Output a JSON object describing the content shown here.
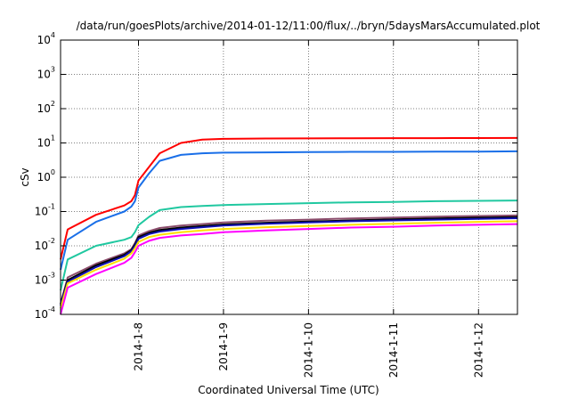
{
  "chart_data": {
    "type": "line",
    "title": "/data/run/goesPlots/archive/2014-01-12/11:00/flux/../bryn/5daysMarsAccumulated.plot",
    "xlabel": "Coordinated Universal Time (UTC)",
    "ylabel": "cSv",
    "yscale": "log",
    "ylim": [
      0.0001,
      10000
    ],
    "y_ticks": [
      {
        "base": "10",
        "exp": "-4",
        "value": 0.0001
      },
      {
        "base": "10",
        "exp": "-3",
        "value": 0.001
      },
      {
        "base": "10",
        "exp": "-2",
        "value": 0.01
      },
      {
        "base": "10",
        "exp": "-1",
        "value": 0.1
      },
      {
        "base": "10",
        "exp": "0",
        "value": 1
      },
      {
        "base": "10",
        "exp": "1",
        "value": 10
      },
      {
        "base": "10",
        "exp": "2",
        "value": 100
      },
      {
        "base": "10",
        "exp": "3",
        "value": 1000
      },
      {
        "base": "10",
        "exp": "4",
        "value": 10000
      }
    ],
    "xlim": [
      "2014-01-07 02:00",
      "2014-01-12 11:00"
    ],
    "x_ticks": [
      {
        "label": "2014-1-8",
        "value": "2014-01-08 00:00"
      },
      {
        "label": "2014-1-9",
        "value": "2014-01-09 00:00"
      },
      {
        "label": "2014-1-10",
        "value": "2014-01-10 00:00"
      },
      {
        "label": "2014-1-11",
        "value": "2014-01-11 00:00"
      },
      {
        "label": "2014-1-12",
        "value": "2014-01-12 00:00"
      }
    ],
    "grid": true,
    "x": [
      "2014-01-07 02:00",
      "2014-01-07 04:00",
      "2014-01-07 12:00",
      "2014-01-07 20:00",
      "2014-01-07 22:00",
      "2014-01-07 23:00",
      "2014-01-08 00:00",
      "2014-01-08 03:00",
      "2014-01-08 06:00",
      "2014-01-08 12:00",
      "2014-01-08 18:00",
      "2014-01-09 00:00",
      "2014-01-09 12:00",
      "2014-01-10 00:00",
      "2014-01-10 12:00",
      "2014-01-11 00:00",
      "2014-01-11 12:00",
      "2014-01-12 00:00",
      "2014-01-12 11:00"
    ],
    "series": [
      {
        "color": "#ff0000",
        "values": [
          0.004,
          0.03,
          0.08,
          0.15,
          0.2,
          0.3,
          0.8,
          2,
          5,
          10,
          12.5,
          13.2,
          13.5,
          13.6,
          13.7,
          13.8,
          13.8,
          13.9,
          14.0
        ]
      },
      {
        "color": "#1a6fe8",
        "values": [
          0.002,
          0.015,
          0.05,
          0.1,
          0.14,
          0.2,
          0.5,
          1.3,
          3,
          4.5,
          5.0,
          5.2,
          5.3,
          5.4,
          5.5,
          5.5,
          5.6,
          5.6,
          5.7
        ]
      },
      {
        "color": "#20c8a0",
        "values": [
          0.0005,
          0.004,
          0.01,
          0.015,
          0.018,
          0.025,
          0.04,
          0.07,
          0.11,
          0.135,
          0.145,
          0.155,
          0.165,
          0.175,
          0.185,
          0.19,
          0.2,
          0.205,
          0.21
        ]
      },
      {
        "color": "#8b4c6c",
        "values": [
          0.0002,
          0.0012,
          0.003,
          0.006,
          0.008,
          0.012,
          0.02,
          0.027,
          0.033,
          0.039,
          0.043,
          0.048,
          0.054,
          0.058,
          0.063,
          0.067,
          0.071,
          0.074,
          0.077
        ]
      },
      {
        "color": "#000000",
        "values": [
          0.0002,
          0.001,
          0.0027,
          0.0055,
          0.0075,
          0.011,
          0.018,
          0.024,
          0.029,
          0.034,
          0.038,
          0.042,
          0.047,
          0.051,
          0.055,
          0.059,
          0.063,
          0.066,
          0.069
        ]
      },
      {
        "color": "#1010b0",
        "values": [
          0.00018,
          0.0009,
          0.0024,
          0.005,
          0.007,
          0.01,
          0.016,
          0.022,
          0.026,
          0.031,
          0.035,
          0.039,
          0.044,
          0.048,
          0.052,
          0.055,
          0.058,
          0.061,
          0.064
        ]
      },
      {
        "color": "#ffe000",
        "values": [
          0.00015,
          0.0008,
          0.002,
          0.0042,
          0.006,
          0.0085,
          0.013,
          0.018,
          0.021,
          0.025,
          0.028,
          0.031,
          0.035,
          0.038,
          0.041,
          0.044,
          0.047,
          0.05,
          0.052
        ]
      },
      {
        "color": "#ff00ff",
        "values": [
          0.0001,
          0.0006,
          0.0015,
          0.0032,
          0.0045,
          0.0065,
          0.01,
          0.014,
          0.017,
          0.02,
          0.022,
          0.025,
          0.028,
          0.031,
          0.034,
          0.036,
          0.039,
          0.041,
          0.043
        ]
      }
    ]
  }
}
